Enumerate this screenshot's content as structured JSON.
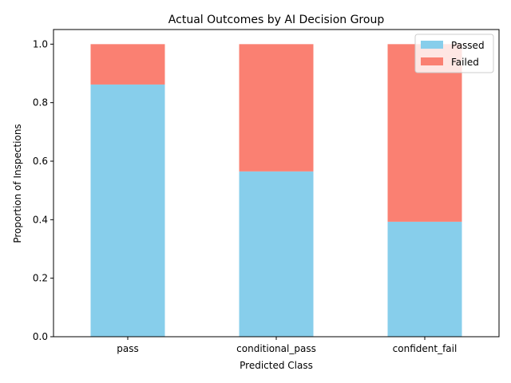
{
  "chart_data": {
    "type": "bar",
    "stacked": true,
    "title": "Actual Outcomes by AI Decision Group",
    "xlabel": "Predicted Class",
    "ylabel": "Proportion of Inspections",
    "categories": [
      "pass",
      "conditional_pass",
      "confident_fail"
    ],
    "series": [
      {
        "name": "Passed",
        "values": [
          0.862,
          0.565,
          0.393
        ],
        "color": "#87CEEB"
      },
      {
        "name": "Failed",
        "values": [
          0.138,
          0.435,
          0.607
        ],
        "color": "#FA8072"
      }
    ],
    "ylim": [
      0,
      1.05
    ],
    "yticks": [
      "0.0",
      "0.2",
      "0.4",
      "0.6",
      "0.8",
      "1.0"
    ],
    "grid": false,
    "legend_position": "top-right"
  }
}
